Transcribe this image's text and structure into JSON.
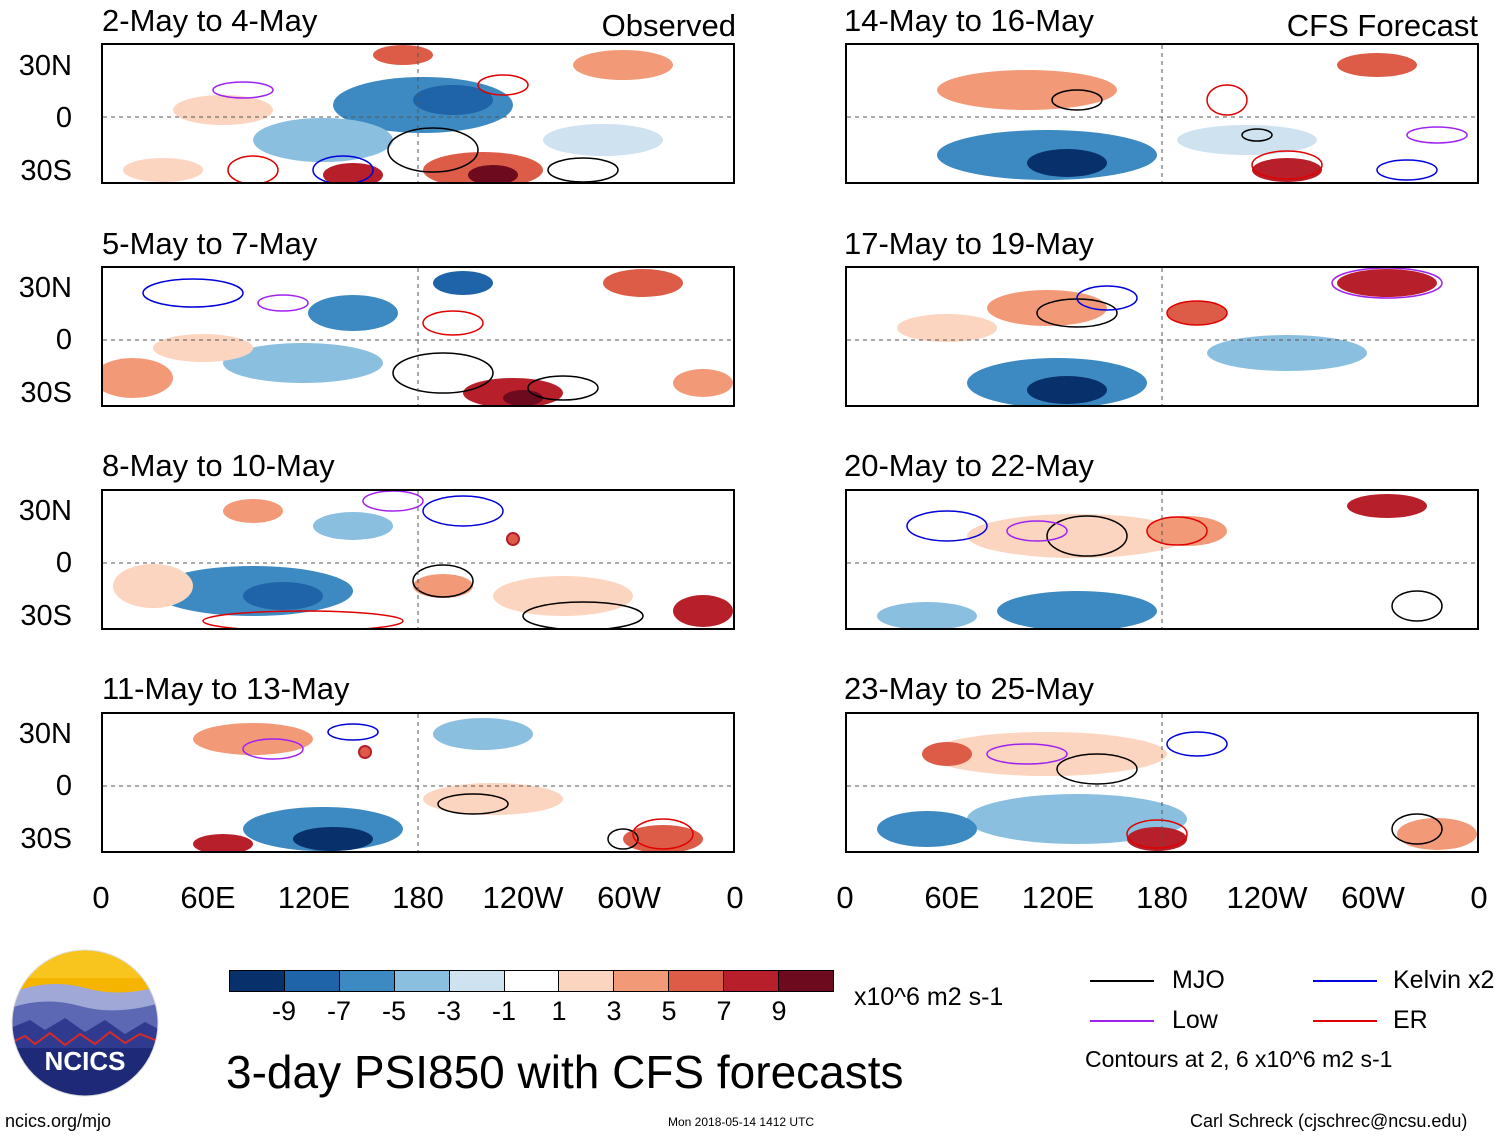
{
  "observed_label": "Observed",
  "forecast_label": "CFS Forecast",
  "panels_left": [
    {
      "title": "2-May to 4-May"
    },
    {
      "title": "5-May to 7-May"
    },
    {
      "title": "8-May to 10-May"
    },
    {
      "title": "11-May to 13-May"
    }
  ],
  "panels_right": [
    {
      "title": "14-May to 16-May"
    },
    {
      "title": "17-May to 19-May"
    },
    {
      "title": "20-May to 22-May"
    },
    {
      "title": "23-May to 25-May"
    }
  ],
  "y_axis_labels": [
    "30N",
    "0",
    "30S"
  ],
  "x_axis_labels": [
    "0",
    "60E",
    "120E",
    "180",
    "120W",
    "60W",
    "0"
  ],
  "colorbar": {
    "colors": [
      "#08306b",
      "#1f63a8",
      "#3c8ac1",
      "#8abfe0",
      "#cfe2f0",
      "#ffffff",
      "#fcd5c0",
      "#f29a78",
      "#dc5c48",
      "#b71f2a",
      "#6e0a1e"
    ],
    "tick_labels": [
      "-9",
      "-7",
      "-5",
      "-3",
      "-1",
      "1",
      "3",
      "5",
      "7",
      "9"
    ],
    "units": "x10^6 m2 s-1"
  },
  "legend": {
    "items": [
      {
        "label": "MJO",
        "color": "#000000"
      },
      {
        "label": "Kelvin x2",
        "color": "#0000dd"
      },
      {
        "label": "Low",
        "color": "#a020f0"
      },
      {
        "label": "ER",
        "color": "#e00000"
      }
    ],
    "note": "Contours at 2, 6 x10^6 m2 s-1"
  },
  "logo_text": "NCICS",
  "main_title": "3-day PSI850 with CFS forecasts",
  "footer": {
    "url": "ncics.org/mjo",
    "timestamp": "Mon 2018-05-14 1412 UTC",
    "credit": "Carl Schreck (cjschrec@ncsu.edu)"
  }
}
